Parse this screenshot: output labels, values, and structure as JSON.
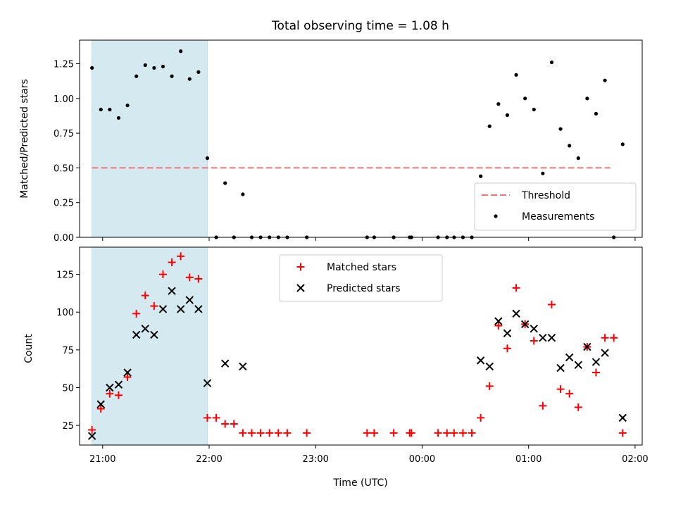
{
  "chart_data": [
    {
      "type": "scatter",
      "title": "Total observing time = 1.08 h",
      "ylabel": "Matched/Predicted stars",
      "xlabel": "",
      "xlim": [
        "20:47",
        "02:04"
      ],
      "ylim": [
        0,
        1.42
      ],
      "yticks": [
        0.0,
        0.25,
        0.5,
        0.75,
        1.0,
        1.25
      ],
      "ytick_labels": [
        "0.00",
        "0.25",
        "0.50",
        "0.75",
        "1.00",
        "1.25"
      ],
      "shaded_interval": [
        "20:54",
        "21:59"
      ],
      "shaded_color": "#d4eaf0",
      "threshold": {
        "name": "Threshold",
        "y": 0.5,
        "x_range": [
          "20:54",
          "01:46"
        ],
        "color": "#f07575"
      },
      "legend": {
        "position": "lower right",
        "entries": [
          "Threshold",
          "Measurements"
        ]
      },
      "series": [
        {
          "name": "Measurements",
          "color": "#000000",
          "marker": "dot",
          "points": [
            [
              "20:54",
              1.22
            ],
            [
              "20:59",
              0.92
            ],
            [
              "21:04",
              0.92
            ],
            [
              "21:09",
              0.86
            ],
            [
              "21:14",
              0.95
            ],
            [
              "21:19",
              1.16
            ],
            [
              "21:24",
              1.24
            ],
            [
              "21:29",
              1.22
            ],
            [
              "21:34",
              1.23
            ],
            [
              "21:39",
              1.16
            ],
            [
              "21:44",
              1.34
            ],
            [
              "21:49",
              1.14
            ],
            [
              "21:54",
              1.19
            ],
            [
              "21:59",
              0.57
            ],
            [
              "22:04",
              0.0
            ],
            [
              "22:09",
              0.39
            ],
            [
              "22:14",
              0.0
            ],
            [
              "22:19",
              0.31
            ],
            [
              "22:24",
              0.0
            ],
            [
              "22:29",
              0.0
            ],
            [
              "22:34",
              0.0
            ],
            [
              "22:39",
              0.0
            ],
            [
              "22:44",
              0.0
            ],
            [
              "22:55",
              0.0
            ],
            [
              "23:29",
              0.0
            ],
            [
              "23:33",
              0.0
            ],
            [
              "23:44",
              0.0
            ],
            [
              "23:53",
              0.0
            ],
            [
              "23:54",
              0.0
            ],
            [
              "00:09",
              0.0
            ],
            [
              "00:14",
              0.0
            ],
            [
              "00:18",
              0.0
            ],
            [
              "00:23",
              0.0
            ],
            [
              "00:28",
              0.0
            ],
            [
              "00:33",
              0.44
            ],
            [
              "00:38",
              0.8
            ],
            [
              "00:43",
              0.96
            ],
            [
              "00:48",
              0.88
            ],
            [
              "00:53",
              1.17
            ],
            [
              "00:58",
              1.0
            ],
            [
              "01:03",
              0.92
            ],
            [
              "01:08",
              0.46
            ],
            [
              "01:13",
              1.26
            ],
            [
              "01:18",
              0.78
            ],
            [
              "01:23",
              0.66
            ],
            [
              "01:28",
              0.57
            ],
            [
              "01:33",
              1.0
            ],
            [
              "01:38",
              0.89
            ],
            [
              "01:43",
              1.13
            ],
            [
              "01:48",
              0.0
            ],
            [
              "01:53",
              0.67
            ]
          ]
        }
      ]
    },
    {
      "type": "scatter",
      "title": "",
      "ylabel": "Count",
      "xlabel": "Time (UTC)",
      "xlim": [
        "20:47",
        "02:04"
      ],
      "ylim": [
        12,
        143
      ],
      "yticks": [
        25,
        50,
        75,
        100,
        125
      ],
      "ytick_labels": [
        "25",
        "50",
        "75",
        "100",
        "125"
      ],
      "xticks": [
        "21:00",
        "22:00",
        "23:00",
        "00:00",
        "01:00",
        "02:00"
      ],
      "shaded_interval": [
        "20:54",
        "21:59"
      ],
      "legend": {
        "position": "upper center",
        "entries": [
          "Matched stars",
          "Predicted stars"
        ]
      },
      "series": [
        {
          "name": "Matched stars",
          "color": "#ff0000",
          "marker": "plus",
          "points": [
            [
              "20:54",
              22
            ],
            [
              "20:59",
              36
            ],
            [
              "21:04",
              46
            ],
            [
              "21:09",
              45
            ],
            [
              "21:14",
              57
            ],
            [
              "21:19",
              99
            ],
            [
              "21:24",
              111
            ],
            [
              "21:29",
              104
            ],
            [
              "21:34",
              125
            ],
            [
              "21:39",
              133
            ],
            [
              "21:44",
              137
            ],
            [
              "21:49",
              123
            ],
            [
              "21:54",
              122
            ],
            [
              "21:59",
              30
            ],
            [
              "22:04",
              30
            ],
            [
              "22:09",
              26
            ],
            [
              "22:14",
              26
            ],
            [
              "22:19",
              20
            ],
            [
              "22:24",
              20
            ],
            [
              "22:29",
              20
            ],
            [
              "22:34",
              20
            ],
            [
              "22:39",
              20
            ],
            [
              "22:44",
              20
            ],
            [
              "22:55",
              20
            ],
            [
              "23:29",
              20
            ],
            [
              "23:33",
              20
            ],
            [
              "23:44",
              20
            ],
            [
              "23:53",
              20
            ],
            [
              "23:54",
              20
            ],
            [
              "00:09",
              20
            ],
            [
              "00:14",
              20
            ],
            [
              "00:18",
              20
            ],
            [
              "00:23",
              20
            ],
            [
              "00:28",
              20
            ],
            [
              "00:33",
              30
            ],
            [
              "00:38",
              51
            ],
            [
              "00:43",
              91
            ],
            [
              "00:48",
              76
            ],
            [
              "00:53",
              116
            ],
            [
              "00:58",
              92
            ],
            [
              "01:03",
              81
            ],
            [
              "01:08",
              38
            ],
            [
              "01:13",
              105
            ],
            [
              "01:18",
              49
            ],
            [
              "01:23",
              46
            ],
            [
              "01:28",
              37
            ],
            [
              "01:33",
              77
            ],
            [
              "01:38",
              60
            ],
            [
              "01:43",
              83
            ],
            [
              "01:48",
              83
            ],
            [
              "01:53",
              20
            ]
          ]
        },
        {
          "name": "Predicted stars",
          "color": "#000000",
          "marker": "x",
          "points": [
            [
              "20:54",
              18
            ],
            [
              "20:59",
              39
            ],
            [
              "21:04",
              50
            ],
            [
              "21:09",
              52
            ],
            [
              "21:14",
              60
            ],
            [
              "21:19",
              85
            ],
            [
              "21:24",
              89
            ],
            [
              "21:29",
              85
            ],
            [
              "21:34",
              102
            ],
            [
              "21:39",
              114
            ],
            [
              "21:44",
              102
            ],
            [
              "21:49",
              108
            ],
            [
              "21:54",
              102
            ],
            [
              "21:59",
              53
            ],
            [
              "22:09",
              66
            ],
            [
              "22:19",
              64
            ],
            [
              "00:33",
              68
            ],
            [
              "00:38",
              64
            ],
            [
              "00:43",
              94
            ],
            [
              "00:48",
              86
            ],
            [
              "00:53",
              99
            ],
            [
              "00:58",
              92
            ],
            [
              "01:03",
              89
            ],
            [
              "01:08",
              83
            ],
            [
              "01:13",
              83
            ],
            [
              "01:18",
              63
            ],
            [
              "01:23",
              70
            ],
            [
              "01:28",
              65
            ],
            [
              "01:33",
              77
            ],
            [
              "01:38",
              67
            ],
            [
              "01:43",
              73
            ],
            [
              "01:53",
              30
            ]
          ]
        }
      ]
    }
  ]
}
